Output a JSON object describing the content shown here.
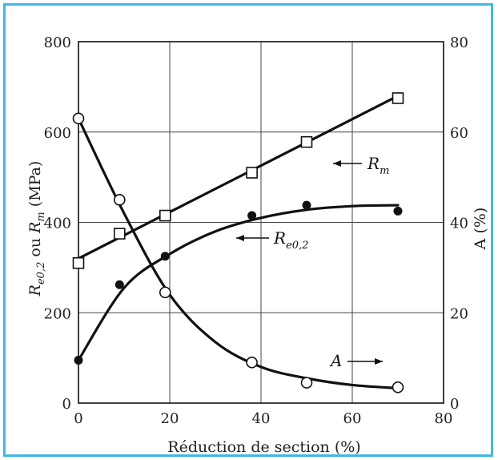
{
  "colors": {
    "frame": "#3fb6e6",
    "ink": "#111111",
    "grid": "#444444"
  },
  "chart_data": {
    "type": "scatter",
    "xlabel": "Réduction de section (%)",
    "ylabel_left": {
      "part1": "R",
      "sub1": "e0,2",
      "part2": " ou ",
      "part3": "R",
      "sub2": "m",
      "part4": " (MPa)"
    },
    "ylabel_right": "A (%)",
    "xlim": [
      0,
      80
    ],
    "ylim_left": [
      0,
      800
    ],
    "ylim_right": [
      0,
      80
    ],
    "xticks": [
      "0",
      "20",
      "40",
      "60",
      "80"
    ],
    "yticks_left": [
      "0",
      "200",
      "400",
      "600",
      "800"
    ],
    "yticks_right": [
      "0",
      "20",
      "40",
      "60",
      "80"
    ],
    "grid": true,
    "series": [
      {
        "name": "Rm",
        "label": {
          "main": "R",
          "sub": "m"
        },
        "marker": "square-open",
        "axis": "left",
        "x": [
          0,
          9,
          19,
          38,
          50,
          70
        ],
        "y": [
          310,
          375,
          415,
          510,
          578,
          675
        ],
        "fit": [
          [
            0,
            320
          ],
          [
            70,
            680
          ]
        ],
        "fit_type": "line"
      },
      {
        "name": "Re0,2",
        "label": {
          "main": "R",
          "sub": "e0,2"
        },
        "marker": "circle-filled",
        "axis": "left",
        "x": [
          0,
          9,
          19,
          38,
          50,
          70
        ],
        "y": [
          95,
          262,
          325,
          415,
          438,
          425
        ],
        "fit": [
          [
            0,
            95
          ],
          [
            10,
            255
          ],
          [
            20,
            330
          ],
          [
            30,
            380
          ],
          [
            40,
            410
          ],
          [
            50,
            428
          ],
          [
            60,
            436
          ],
          [
            70,
            438
          ]
        ],
        "fit_type": "curve"
      },
      {
        "name": "A",
        "label": {
          "main": "A"
        },
        "marker": "circle-open",
        "axis": "right",
        "x": [
          0,
          9,
          19,
          38,
          50,
          70
        ],
        "y": [
          63,
          45,
          24.5,
          9,
          4.5,
          3.5
        ],
        "fit": [
          [
            0,
            63
          ],
          [
            10,
            42
          ],
          [
            20,
            24
          ],
          [
            30,
            13.5
          ],
          [
            40,
            8
          ],
          [
            50,
            5.5
          ],
          [
            60,
            4
          ],
          [
            70,
            3.3
          ]
        ],
        "fit_type": "curve"
      }
    ]
  }
}
